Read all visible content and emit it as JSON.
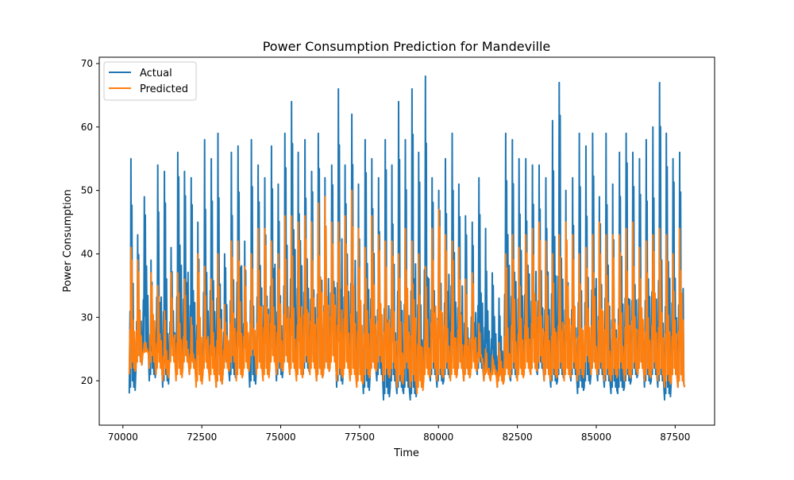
{
  "chart_data": {
    "type": "line",
    "title": "Power Consumption Prediction for Mandeville",
    "xlabel": "Time",
    "ylabel": "Power Consumption",
    "xlim": [
      69250,
      88750
    ],
    "ylim": [
      13,
      71
    ],
    "xticks": [
      70000,
      72500,
      75000,
      77500,
      80000,
      82500,
      85000,
      87500
    ],
    "xtick_labels": [
      "70000",
      "72500",
      "75000",
      "77500",
      "80000",
      "82500",
      "85000",
      "87500"
    ],
    "yticks": [
      20,
      30,
      40,
      50,
      60,
      70
    ],
    "ytick_labels": [
      "20",
      "30",
      "40",
      "50",
      "60",
      "70"
    ],
    "grid": false,
    "legend_position": "top-left",
    "x_start": 70200,
    "x_end": 87800,
    "series": [
      {
        "name": "Actual",
        "color": "#1f77b4",
        "line_width": 2,
        "peaks": [
          55,
          43,
          49,
          39,
          54,
          53,
          41,
          56,
          53,
          52,
          45,
          58,
          55,
          59,
          40,
          56,
          57,
          42,
          58,
          54,
          52,
          57,
          51,
          59,
          64,
          56,
          58,
          53,
          59,
          52,
          54,
          66,
          54,
          62,
          51,
          58,
          55,
          52,
          58,
          54,
          64,
          58,
          66,
          56,
          68,
          52,
          50,
          55,
          59,
          51,
          46,
          45,
          52,
          44,
          37,
          33,
          59,
          58,
          55,
          55,
          54,
          54,
          52,
          61,
          67,
          50,
          52,
          59,
          57,
          59,
          49,
          59,
          51,
          56,
          59,
          56,
          55,
          58,
          60,
          67,
          59,
          55,
          56
        ],
        "lows": [
          18,
          22,
          24,
          20,
          22,
          19,
          23,
          21,
          22,
          21,
          20,
          21,
          23,
          19,
          21,
          20,
          24,
          22,
          19,
          22,
          21,
          23,
          20,
          22,
          21,
          23,
          21,
          22,
          20,
          21,
          23,
          19,
          22,
          21,
          20,
          18,
          21,
          20,
          17,
          19,
          18,
          18,
          17,
          19,
          21,
          20,
          19,
          20,
          22,
          21,
          20,
          22,
          21,
          20,
          21,
          19,
          20,
          20,
          21,
          22,
          21,
          21,
          20,
          19,
          20,
          21,
          20,
          18,
          19,
          21,
          20,
          19,
          18,
          18,
          19,
          20,
          21,
          19,
          20,
          19,
          17,
          20,
          19
        ]
      },
      {
        "name": "Predicted",
        "color": "#ff7f0e",
        "line_width": 2,
        "peaks": [
          41,
          39,
          26,
          37,
          35,
          31,
          37,
          37,
          36,
          30,
          40,
          38,
          36,
          40,
          32,
          42,
          42,
          38,
          40,
          44,
          44,
          42,
          40,
          46,
          46,
          45,
          46,
          45,
          48,
          49,
          45,
          45,
          46,
          50,
          44,
          41,
          46,
          43,
          42,
          42,
          40,
          44,
          42,
          40,
          38,
          44,
          47,
          43,
          42,
          41,
          36,
          37,
          29,
          25,
          24,
          26,
          40,
          43,
          41,
          43,
          44,
          45,
          42,
          40,
          43,
          45,
          43,
          40,
          41,
          43,
          45,
          43,
          43,
          43,
          44,
          45,
          41,
          42,
          43,
          44,
          43,
          40,
          44
        ],
        "lows": [
          21,
          22,
          24,
          22,
          21,
          20,
          22,
          20,
          22,
          21,
          19,
          21,
          20,
          19,
          21,
          22,
          20,
          21,
          23,
          21,
          20,
          22,
          21,
          22,
          21,
          20,
          22,
          21,
          20,
          21,
          22,
          20,
          21,
          20,
          19,
          20,
          21,
          22,
          20,
          21,
          19,
          21,
          19,
          18,
          20,
          21,
          20,
          21,
          20,
          21,
          20,
          21,
          22,
          20,
          20,
          19,
          20,
          21,
          20,
          21,
          21,
          22,
          20,
          20,
          21,
          20,
          21,
          20,
          22,
          21,
          21,
          20,
          20,
          21,
          20,
          21,
          21,
          20,
          21,
          20,
          19,
          20,
          19
        ]
      }
    ]
  }
}
